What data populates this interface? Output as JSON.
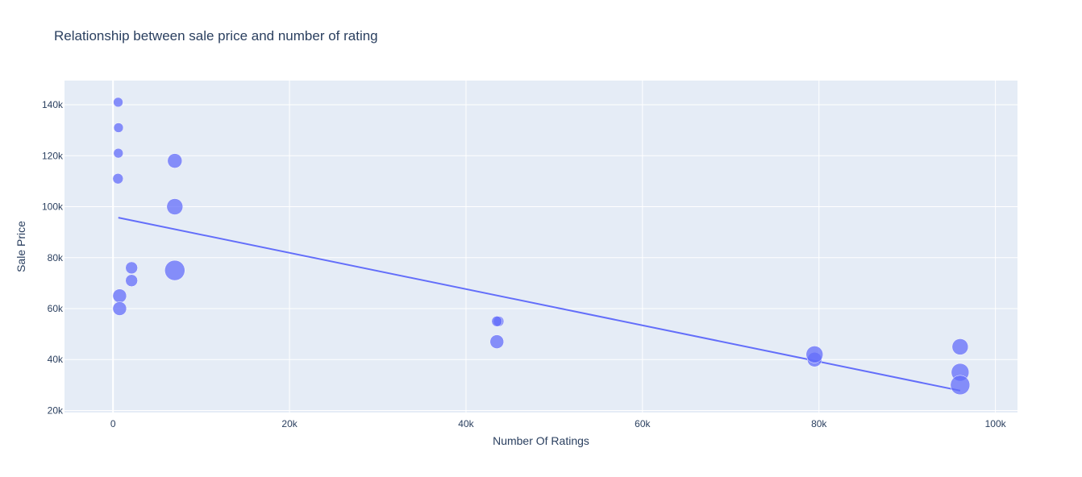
{
  "chart_data": {
    "type": "scatter",
    "title": "Relationship between sale price and number of rating",
    "xlabel": "Number Of Ratings",
    "ylabel": "Sale Price",
    "xlim": [
      -5500,
      102500
    ],
    "ylim": [
      19200,
      149500
    ],
    "xticks": [
      {
        "value": 0,
        "label": "0"
      },
      {
        "value": 20000,
        "label": "20k"
      },
      {
        "value": 40000,
        "label": "40k"
      },
      {
        "value": 60000,
        "label": "60k"
      },
      {
        "value": 80000,
        "label": "80k"
      },
      {
        "value": 100000,
        "label": "100k"
      }
    ],
    "yticks": [
      {
        "value": 20000,
        "label": "20k"
      },
      {
        "value": 40000,
        "label": "40k"
      },
      {
        "value": 60000,
        "label": "60k"
      },
      {
        "value": 80000,
        "label": "80k"
      },
      {
        "value": 100000,
        "label": "100k"
      },
      {
        "value": 120000,
        "label": "120k"
      },
      {
        "value": 140000,
        "label": "140k"
      }
    ],
    "grid": true,
    "legend": false,
    "colors": {
      "marker": "#636efa",
      "trendline": "#636efa",
      "plot_bg": "#e5ecf6",
      "grid": "#ffffff",
      "text": "#2a3f5f"
    },
    "points": [
      {
        "x": 580,
        "y": 141000,
        "size": 6
      },
      {
        "x": 620,
        "y": 131000,
        "size": 6
      },
      {
        "x": 600,
        "y": 121000,
        "size": 6
      },
      {
        "x": 560,
        "y": 111000,
        "size": 6.5
      },
      {
        "x": 7000,
        "y": 118000,
        "size": 9
      },
      {
        "x": 7000,
        "y": 100000,
        "size": 10
      },
      {
        "x": 7000,
        "y": 75000,
        "size": 12.5
      },
      {
        "x": 2100,
        "y": 76000,
        "size": 7.5
      },
      {
        "x": 2100,
        "y": 71000,
        "size": 7.5
      },
      {
        "x": 750,
        "y": 65000,
        "size": 8.5
      },
      {
        "x": 750,
        "y": 60000,
        "size": 8.5
      },
      {
        "x": 43700,
        "y": 55000,
        "size": 6.5
      },
      {
        "x": 43500,
        "y": 55000,
        "size": 6.5
      },
      {
        "x": 43500,
        "y": 47000,
        "size": 8.5
      },
      {
        "x": 79500,
        "y": 40000,
        "size": 9
      },
      {
        "x": 79500,
        "y": 42000,
        "size": 10.5
      },
      {
        "x": 96000,
        "y": 45000,
        "size": 10
      },
      {
        "x": 96000,
        "y": 35000,
        "size": 11
      },
      {
        "x": 96000,
        "y": 30000,
        "size": 12
      }
    ],
    "trendline": {
      "x": [
        600,
        96000
      ],
      "y": [
        95700,
        27800
      ]
    }
  }
}
